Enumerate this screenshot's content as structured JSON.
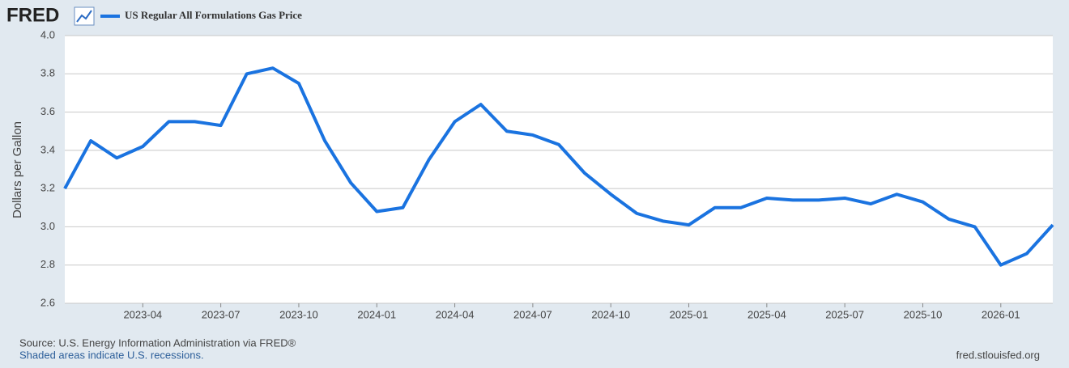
{
  "chart_data": {
    "type": "line",
    "brand": "FRED",
    "ylabel": "Dollars per Gallon",
    "source": "Source: U.S. Energy Information Administration via FRED®",
    "note": "Shaded areas indicate U.S. recessions.",
    "url": "fred.stlouisfed.org",
    "x": [
      "2023-01",
      "2023-02",
      "2023-03",
      "2023-04",
      "2023-05",
      "2023-06",
      "2023-07",
      "2023-08",
      "2023-09",
      "2023-10",
      "2023-11",
      "2023-12",
      "2024-01",
      "2024-02",
      "2024-03",
      "2024-04",
      "2024-05",
      "2024-06",
      "2024-07",
      "2024-08",
      "2024-09",
      "2024-10",
      "2024-11",
      "2024-12",
      "2025-01",
      "2025-02",
      "2025-03",
      "2025-04",
      "2025-05",
      "2025-06",
      "2025-07",
      "2025-08",
      "2025-09",
      "2025-10",
      "2025-11",
      "2025-12",
      "2026-01",
      "2026-02",
      "2026-03"
    ],
    "series": [
      {
        "name": "US Regular All Formulations Gas Price",
        "color": "#1a73e0",
        "values": [
          3.2,
          3.45,
          3.36,
          3.42,
          3.55,
          3.55,
          3.53,
          3.8,
          3.83,
          3.75,
          3.45,
          3.23,
          3.08,
          3.1,
          3.35,
          3.55,
          3.64,
          3.5,
          3.48,
          3.43,
          3.28,
          3.17,
          3.07,
          3.03,
          3.01,
          3.1,
          3.1,
          3.15,
          3.14,
          3.14,
          3.15,
          3.12,
          3.17,
          3.13,
          3.04,
          3.0,
          2.8,
          2.86,
          3.01
        ]
      }
    ],
    "xlim": [
      "2023-01",
      "2026-03"
    ],
    "xticks": [
      "2023-04",
      "2023-07",
      "2023-10",
      "2024-01",
      "2024-04",
      "2024-07",
      "2024-10",
      "2025-01",
      "2025-04",
      "2025-07",
      "2025-10",
      "2026-01"
    ],
    "ylim": [
      2.6,
      4.0
    ],
    "yticks": [
      2.6,
      2.8,
      {
        "value": 3.0,
        "label": "3.0"
      },
      3.2,
      3.4,
      3.6,
      3.8,
      {
        "value": 4.0,
        "label": "4.0"
      }
    ],
    "grid": true
  }
}
